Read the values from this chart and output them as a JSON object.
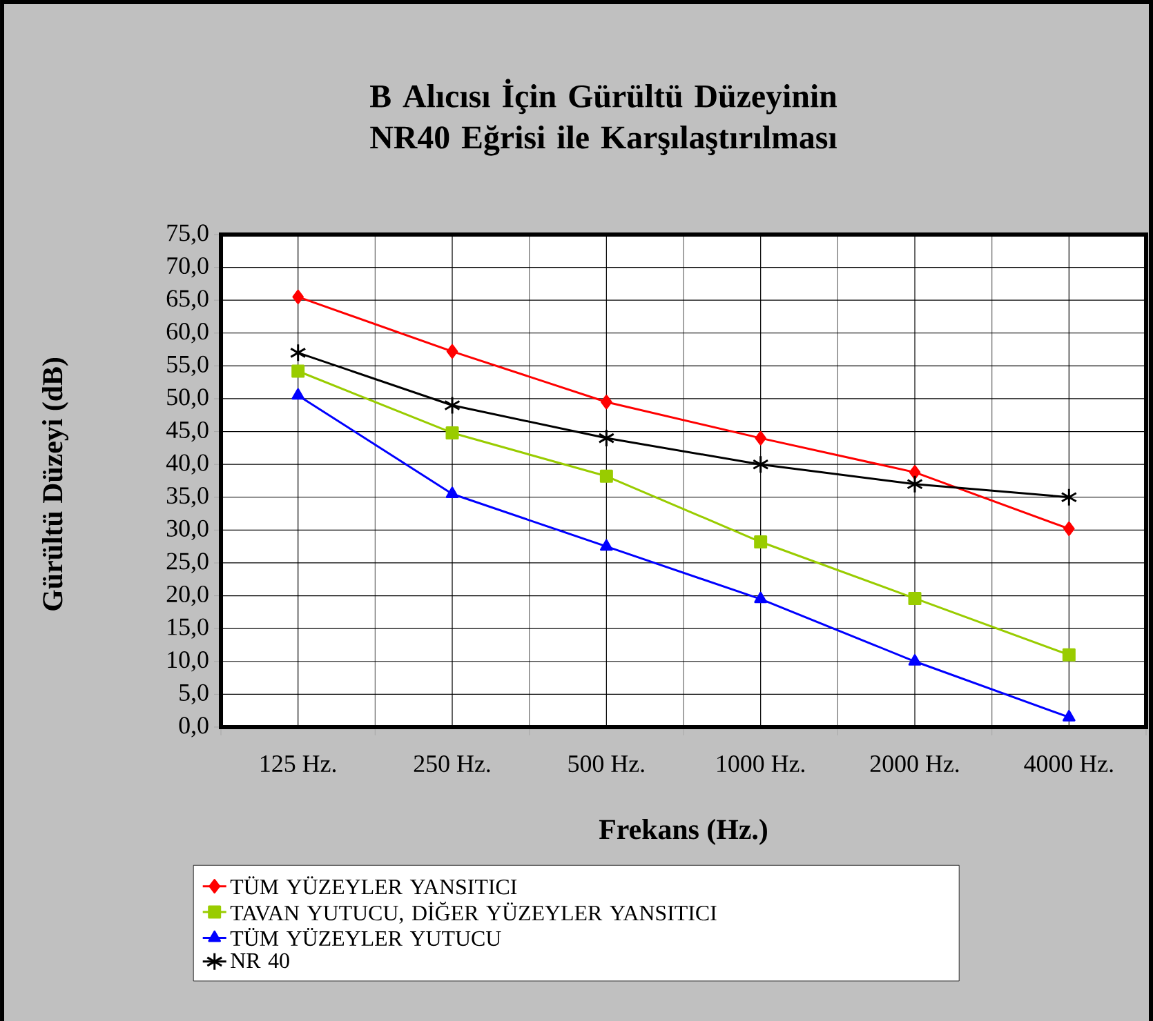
{
  "chart_data": {
    "type": "line",
    "title": "B Alıcısı İçin Gürültü Düzeyinin NR40 Eğrisi ile Karşılaştırılması",
    "xlabel": "Frekans (Hz.)",
    "ylabel": "Gürültü Düzeyi (dB)",
    "categories": [
      "125 Hz.",
      "250 Hz.",
      "500 Hz.",
      "1000 Hz.",
      "2000 Hz.",
      "4000 Hz."
    ],
    "series": [
      {
        "name": "TÜM YÜZEYLER YANSITICI",
        "color": "#ff0000",
        "marker": "diamond",
        "values": [
          65.5,
          57.2,
          49.5,
          44.0,
          38.8,
          30.2
        ]
      },
      {
        "name": "TAVAN YUTUCU, DİĞER YÜZEYLER YANSITICI",
        "color": "#99cc00",
        "marker": "square",
        "values": [
          54.2,
          44.8,
          38.2,
          28.2,
          19.6,
          11.0
        ]
      },
      {
        "name": "TÜM YÜZEYLER YUTUCU",
        "color": "#0000ff",
        "marker": "triangle",
        "values": [
          50.5,
          35.5,
          27.5,
          19.5,
          10.0,
          1.5
        ]
      },
      {
        "name": "NR 40",
        "color": "#000000",
        "marker": "cross",
        "values": [
          57.0,
          49.0,
          44.0,
          40.0,
          37.0,
          35.0
        ]
      }
    ],
    "ylim": [
      0,
      75
    ],
    "yticks": [
      {
        "value": 0,
        "label": "0,0"
      },
      {
        "value": 5,
        "label": "5,0"
      },
      {
        "value": 10,
        "label": "10,0"
      },
      {
        "value": 15,
        "label": "15,0"
      },
      {
        "value": 20,
        "label": "20,0"
      },
      {
        "value": 25,
        "label": "25,0"
      },
      {
        "value": 30,
        "label": "30,0"
      },
      {
        "value": 35,
        "label": "35,0"
      },
      {
        "value": 40,
        "label": "40,0"
      },
      {
        "value": 45,
        "label": "45,0"
      },
      {
        "value": 50,
        "label": "50,0"
      },
      {
        "value": 55,
        "label": "55,0"
      },
      {
        "value": 60,
        "label": "60,0"
      },
      {
        "value": 65,
        "label": "65,0"
      },
      {
        "value": 70,
        "label": "70,0"
      },
      {
        "value": 75,
        "label": "75,0"
      }
    ],
    "grid": true,
    "legend": "bottom",
    "line_style": "solid"
  }
}
